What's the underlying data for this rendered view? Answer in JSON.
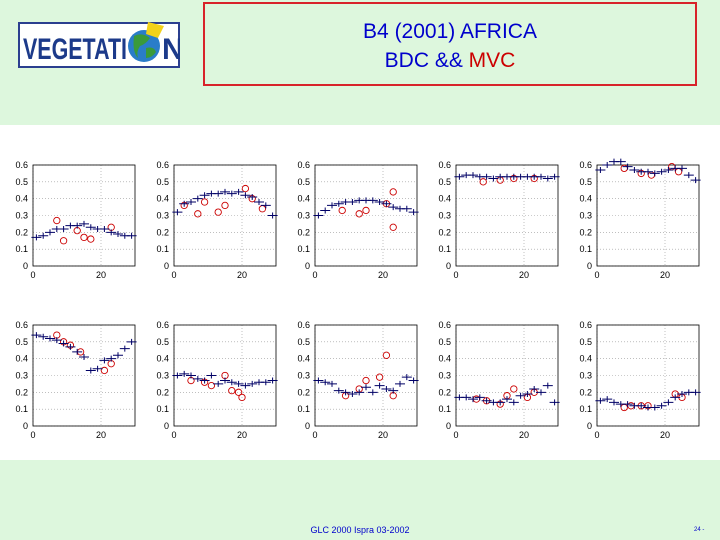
{
  "logo": {
    "text": "VEGETATI",
    "text_end": "N"
  },
  "title": {
    "line1": "B4 (2001) AFRICA",
    "bdc": "BDC &&",
    "mvc": "MVC"
  },
  "colors": {
    "bdc": "#000066",
    "mvc": "#cc0000",
    "title_border": "#d8232a",
    "background": "#ddf7dd"
  },
  "footer": {
    "text": "GLC 2000 Ispra 03-2002",
    "page": "24 -"
  },
  "chart_data": {
    "type": "scatter",
    "layout": "small multiples, 2 rows x 5 columns",
    "ylim": [
      0,
      0.6
    ],
    "xlim": [
      0,
      30
    ],
    "yticks": [
      "0",
      "0.1",
      "0.2",
      "0.3",
      "0.4",
      "0.5",
      "0.6"
    ],
    "xticks": [
      "0",
      "20"
    ],
    "grid": "dotted",
    "series": [
      {
        "name": "BDC",
        "marker": "plus"
      },
      {
        "name": "MVC",
        "marker": "circle"
      }
    ],
    "panels": [
      {
        "bdc": [
          [
            1,
            0.17
          ],
          [
            3,
            0.18
          ],
          [
            5,
            0.2
          ],
          [
            7,
            0.22
          ],
          [
            9,
            0.22
          ],
          [
            11,
            0.24
          ],
          [
            13,
            0.24
          ],
          [
            15,
            0.25
          ],
          [
            17,
            0.23
          ],
          [
            19,
            0.22
          ],
          [
            21,
            0.22
          ],
          [
            23,
            0.2
          ],
          [
            25,
            0.19
          ],
          [
            27,
            0.18
          ],
          [
            29,
            0.18
          ]
        ],
        "mvc": [
          [
            7,
            0.27
          ],
          [
            9,
            0.15
          ],
          [
            13,
            0.21
          ],
          [
            15,
            0.17
          ],
          [
            17,
            0.16
          ],
          [
            23,
            0.23
          ]
        ]
      },
      {
        "bdc": [
          [
            1,
            0.32
          ],
          [
            3,
            0.37
          ],
          [
            5,
            0.38
          ],
          [
            7,
            0.4
          ],
          [
            9,
            0.42
          ],
          [
            11,
            0.43
          ],
          [
            13,
            0.43
          ],
          [
            15,
            0.44
          ],
          [
            17,
            0.43
          ],
          [
            19,
            0.44
          ],
          [
            21,
            0.42
          ],
          [
            23,
            0.41
          ],
          [
            25,
            0.38
          ],
          [
            27,
            0.36
          ],
          [
            29,
            0.3
          ]
        ],
        "mvc": [
          [
            3,
            0.36
          ],
          [
            7,
            0.31
          ],
          [
            9,
            0.38
          ],
          [
            13,
            0.32
          ],
          [
            15,
            0.36
          ],
          [
            21,
            0.46
          ],
          [
            23,
            0.4
          ],
          [
            26,
            0.34
          ]
        ]
      },
      {
        "bdc": [
          [
            1,
            0.3
          ],
          [
            3,
            0.33
          ],
          [
            5,
            0.36
          ],
          [
            7,
            0.37
          ],
          [
            9,
            0.38
          ],
          [
            11,
            0.38
          ],
          [
            13,
            0.39
          ],
          [
            15,
            0.39
          ],
          [
            17,
            0.39
          ],
          [
            19,
            0.38
          ],
          [
            21,
            0.37
          ],
          [
            23,
            0.35
          ],
          [
            25,
            0.34
          ],
          [
            27,
            0.34
          ],
          [
            29,
            0.32
          ]
        ],
        "mvc": [
          [
            8,
            0.33
          ],
          [
            13,
            0.31
          ],
          [
            15,
            0.33
          ],
          [
            21,
            0.37
          ],
          [
            23,
            0.44
          ],
          [
            23,
            0.23
          ]
        ]
      },
      {
        "bdc": [
          [
            1,
            0.53
          ],
          [
            3,
            0.54
          ],
          [
            5,
            0.54
          ],
          [
            7,
            0.53
          ],
          [
            9,
            0.53
          ],
          [
            11,
            0.52
          ],
          [
            13,
            0.53
          ],
          [
            15,
            0.53
          ],
          [
            17,
            0.53
          ],
          [
            19,
            0.53
          ],
          [
            21,
            0.53
          ],
          [
            23,
            0.53
          ],
          [
            25,
            0.53
          ],
          [
            27,
            0.52
          ],
          [
            29,
            0.53
          ]
        ],
        "mvc": [
          [
            8,
            0.5
          ],
          [
            13,
            0.51
          ],
          [
            17,
            0.52
          ],
          [
            23,
            0.52
          ]
        ]
      },
      {
        "bdc": [
          [
            1,
            0.57
          ],
          [
            3,
            0.6
          ],
          [
            5,
            0.62
          ],
          [
            7,
            0.62
          ],
          [
            9,
            0.59
          ],
          [
            11,
            0.57
          ],
          [
            13,
            0.56
          ],
          [
            15,
            0.56
          ],
          [
            17,
            0.55
          ],
          [
            19,
            0.56
          ],
          [
            21,
            0.57
          ],
          [
            23,
            0.58
          ],
          [
            25,
            0.58
          ],
          [
            27,
            0.54
          ],
          [
            29,
            0.51
          ]
        ],
        "mvc": [
          [
            8,
            0.58
          ],
          [
            13,
            0.55
          ],
          [
            16,
            0.54
          ],
          [
            22,
            0.59
          ],
          [
            24,
            0.56
          ]
        ]
      },
      {
        "bdc": [
          [
            1,
            0.54
          ],
          [
            3,
            0.53
          ],
          [
            5,
            0.52
          ],
          [
            7,
            0.51
          ],
          [
            9,
            0.49
          ],
          [
            11,
            0.47
          ],
          [
            13,
            0.44
          ],
          [
            15,
            0.41
          ],
          [
            17,
            0.33
          ],
          [
            19,
            0.34
          ],
          [
            21,
            0.39
          ],
          [
            23,
            0.4
          ],
          [
            25,
            0.42
          ],
          [
            27,
            0.46
          ],
          [
            29,
            0.5
          ]
        ],
        "mvc": [
          [
            7,
            0.54
          ],
          [
            9,
            0.5
          ],
          [
            11,
            0.48
          ],
          [
            14,
            0.44
          ],
          [
            21,
            0.33
          ],
          [
            23,
            0.37
          ]
        ]
      },
      {
        "bdc": [
          [
            1,
            0.3
          ],
          [
            3,
            0.31
          ],
          [
            5,
            0.3
          ],
          [
            7,
            0.28
          ],
          [
            9,
            0.27
          ],
          [
            11,
            0.3
          ],
          [
            13,
            0.25
          ],
          [
            15,
            0.27
          ],
          [
            17,
            0.26
          ],
          [
            19,
            0.25
          ],
          [
            21,
            0.24
          ],
          [
            23,
            0.25
          ],
          [
            25,
            0.26
          ],
          [
            27,
            0.26
          ],
          [
            29,
            0.27
          ]
        ],
        "mvc": [
          [
            5,
            0.27
          ],
          [
            9,
            0.26
          ],
          [
            11,
            0.24
          ],
          [
            15,
            0.3
          ],
          [
            17,
            0.21
          ],
          [
            19,
            0.2
          ],
          [
            20,
            0.17
          ]
        ]
      },
      {
        "bdc": [
          [
            1,
            0.27
          ],
          [
            3,
            0.26
          ],
          [
            5,
            0.25
          ],
          [
            7,
            0.21
          ],
          [
            9,
            0.2
          ],
          [
            11,
            0.19
          ],
          [
            13,
            0.2
          ],
          [
            15,
            0.23
          ],
          [
            17,
            0.2
          ],
          [
            19,
            0.24
          ],
          [
            21,
            0.22
          ],
          [
            23,
            0.21
          ],
          [
            25,
            0.25
          ],
          [
            27,
            0.29
          ],
          [
            29,
            0.27
          ]
        ],
        "mvc": [
          [
            9,
            0.18
          ],
          [
            13,
            0.22
          ],
          [
            15,
            0.27
          ],
          [
            19,
            0.29
          ],
          [
            21,
            0.42
          ],
          [
            23,
            0.18
          ]
        ]
      },
      {
        "bdc": [
          [
            1,
            0.17
          ],
          [
            3,
            0.17
          ],
          [
            5,
            0.16
          ],
          [
            7,
            0.17
          ],
          [
            9,
            0.15
          ],
          [
            11,
            0.14
          ],
          [
            13,
            0.14
          ],
          [
            15,
            0.16
          ],
          [
            17,
            0.14
          ],
          [
            19,
            0.18
          ],
          [
            21,
            0.19
          ],
          [
            23,
            0.22
          ],
          [
            25,
            0.2
          ],
          [
            27,
            0.24
          ],
          [
            29,
            0.14
          ]
        ],
        "mvc": [
          [
            6,
            0.16
          ],
          [
            9,
            0.15
          ],
          [
            13,
            0.13
          ],
          [
            15,
            0.18
          ],
          [
            17,
            0.22
          ],
          [
            21,
            0.17
          ],
          [
            23,
            0.2
          ]
        ]
      },
      {
        "bdc": [
          [
            1,
            0.15
          ],
          [
            3,
            0.16
          ],
          [
            5,
            0.14
          ],
          [
            7,
            0.13
          ],
          [
            9,
            0.13
          ],
          [
            11,
            0.12
          ],
          [
            13,
            0.12
          ],
          [
            15,
            0.11
          ],
          [
            17,
            0.11
          ],
          [
            19,
            0.12
          ],
          [
            21,
            0.14
          ],
          [
            23,
            0.17
          ],
          [
            25,
            0.19
          ],
          [
            27,
            0.2
          ],
          [
            29,
            0.2
          ]
        ],
        "mvc": [
          [
            8,
            0.11
          ],
          [
            10,
            0.12
          ],
          [
            13,
            0.12
          ],
          [
            15,
            0.12
          ],
          [
            23,
            0.19
          ],
          [
            25,
            0.17
          ]
        ]
      }
    ]
  }
}
